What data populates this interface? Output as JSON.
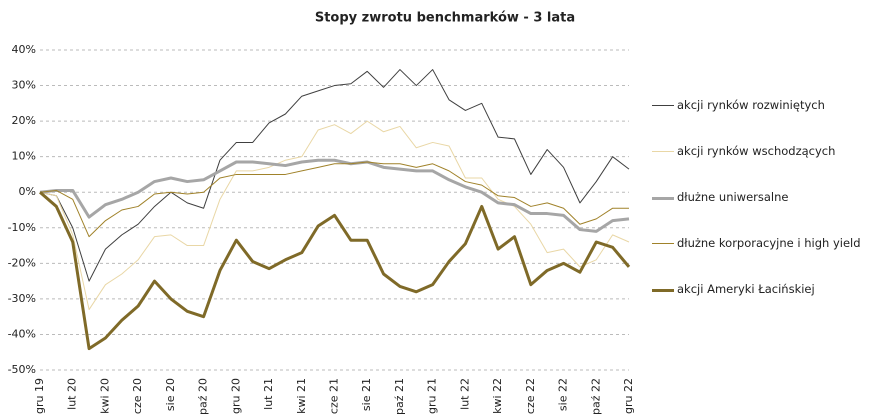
{
  "chart_data": {
    "type": "line",
    "title": "Stopy zwrotu benchmarków - 3 lata",
    "categories": [
      "gru 19",
      null,
      "lut 20",
      null,
      "kwi 20",
      null,
      "cze 20",
      null,
      "sie 20",
      null,
      "paź 20",
      null,
      "gru 20",
      null,
      "lut 21",
      null,
      "kwi 21",
      null,
      "cze 21",
      null,
      "sie 21",
      null,
      "paź 21",
      null,
      "gru 21",
      null,
      "lut 22",
      null,
      "kwi 22",
      null,
      "cze 22",
      null,
      "sie 22",
      null,
      "paź 22",
      null,
      "gru 22"
    ],
    "ylim": [
      -50,
      40
    ],
    "yticks": [
      {
        "value": -50,
        "label": "-50%"
      },
      {
        "value": -40,
        "label": "-40%"
      },
      {
        "value": -30,
        "label": "-30%"
      },
      {
        "value": -20,
        "label": "-20%"
      },
      {
        "value": -10,
        "label": "-10%"
      },
      {
        "value": 0,
        "label": "0%"
      },
      {
        "value": 10,
        "label": "10%"
      },
      {
        "value": 20,
        "label": "20%"
      },
      {
        "value": 30,
        "label": "30%"
      },
      {
        "value": 40,
        "label": "40%"
      }
    ],
    "grid": true,
    "legend": "right",
    "series": [
      {
        "name": "akcji rynków rozwiniętych",
        "color": "#404040",
        "width": 1,
        "values": [
          0,
          -1,
          -10,
          -25,
          -16,
          -12,
          -9,
          -4,
          0,
          -3,
          -4.5,
          9,
          14,
          14,
          19.5,
          22,
          27,
          28.5,
          30,
          30.5,
          34,
          29.5,
          34.5,
          30,
          34.5,
          26,
          23,
          25,
          15.5,
          15,
          5,
          12,
          7,
          -3,
          3,
          10,
          6.5
        ]
      },
      {
        "name": "akcji rynków wschodzących",
        "color": "#e9d7a6",
        "width": 1,
        "values": [
          0,
          -1,
          -12,
          -33,
          -26,
          -23,
          -19,
          -12.5,
          -12,
          -15,
          -15,
          -2,
          6,
          6,
          7,
          9,
          10,
          17.5,
          19,
          16.5,
          20,
          17,
          18.5,
          12.5,
          14,
          13,
          4,
          4,
          -2,
          -4,
          -9,
          -17,
          -16,
          -21,
          -19,
          -12,
          -14
        ]
      },
      {
        "name": "dłużne uniwersalne",
        "color": "#a6a6a6",
        "width": 3,
        "values": [
          0,
          0.5,
          0.5,
          -7,
          -3.5,
          -2,
          0,
          3,
          4,
          3,
          3.5,
          6,
          8.5,
          8.5,
          8,
          7.5,
          8.5,
          9,
          9,
          8,
          8.5,
          7,
          6.5,
          6,
          6,
          3.5,
          1.5,
          0,
          -3,
          -3.5,
          -6,
          -6,
          -6.5,
          -10.5,
          -11,
          -8,
          -7.5
        ]
      },
      {
        "name": "dłużne korporacyjne i high yield",
        "color": "#a0822a",
        "width": 1,
        "values": [
          0,
          0.5,
          -2,
          -12.5,
          -8,
          -5,
          -4,
          -0.5,
          0,
          -0.5,
          0,
          4,
          5,
          5,
          5,
          5,
          6,
          7,
          8,
          8,
          8.5,
          8,
          8,
          7,
          8,
          6,
          3,
          2,
          -1,
          -1.5,
          -4,
          -3,
          -4.5,
          -9,
          -7.5,
          -4.5,
          -4.5
        ]
      },
      {
        "name": "akcji Ameryki Łacińskiej",
        "color": "#7f6a28",
        "width": 3,
        "values": [
          0,
          -4,
          -14,
          -44,
          -41,
          -36,
          -32,
          -25,
          -30,
          -33.5,
          -35,
          -22,
          -13.5,
          -19.5,
          -21.5,
          -19,
          -17,
          -9.5,
          -6.5,
          -13.5,
          -13.5,
          -23,
          -26.5,
          -28,
          -26,
          -19.5,
          -14.5,
          -4,
          -16,
          -12.5,
          -26,
          -22,
          -20,
          -22.5,
          -14,
          -15.5,
          -21
        ]
      }
    ]
  }
}
